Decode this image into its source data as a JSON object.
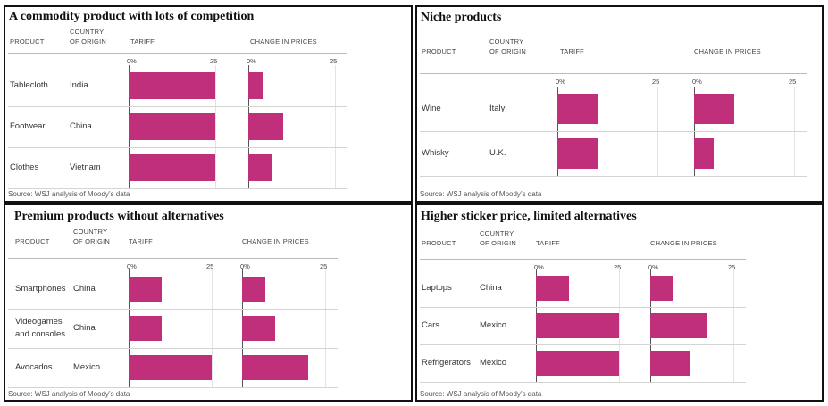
{
  "colors": {
    "bar": "#c0307a",
    "gridline": "#e3e3e3",
    "axis": "#555555",
    "border": "#111111"
  },
  "chart_data": [
    {
      "type": "bar",
      "title": "A commodity product with lots of competition",
      "headers": {
        "product": "PRODUCT",
        "country": "COUNTRY\nOF ORIGIN",
        "tariff": "TARIFF",
        "change": "CHANGE IN PRICES"
      },
      "ticks": {
        "min": "0%",
        "max": "25"
      },
      "xlim": [
        0,
        25
      ],
      "rows": [
        {
          "product": "Tablecloth",
          "country": "India",
          "tariff": 25,
          "change": 4
        },
        {
          "product": "Footwear",
          "country": "China",
          "tariff": 25,
          "change": 10
        },
        {
          "product": "Clothes",
          "country": "Vietnam",
          "tariff": 25,
          "change": 7
        }
      ],
      "source": "Source: WSJ analysis of Moody’s data"
    },
    {
      "type": "bar",
      "title": "Niche products",
      "headers": {
        "product": "PRODUCT",
        "country": "COUNTRY\nOF ORIGIN",
        "tariff": "TARIFF",
        "change": "CHANGE IN PRICES"
      },
      "ticks": {
        "min": "0%",
        "max": "25"
      },
      "xlim": [
        0,
        25
      ],
      "rows": [
        {
          "product": "Wine",
          "country": "Italy",
          "tariff": 10,
          "change": 10
        },
        {
          "product": "Whisky",
          "country": "U.K.",
          "tariff": 10,
          "change": 5
        }
      ],
      "source": "Source: WSJ analysis of Moody’s data"
    },
    {
      "type": "bar",
      "title": "Premium products without alternatives",
      "headers": {
        "product": "PRODUCT",
        "country": "COUNTRY\nOF ORIGIN",
        "tariff": "TARIFF",
        "change": "CHANGE IN PRICES"
      },
      "ticks": {
        "min": "0%",
        "max": "25"
      },
      "xlim": [
        0,
        25
      ],
      "rows": [
        {
          "product": "Smartphones",
          "country": "China",
          "tariff": 10,
          "change": 7
        },
        {
          "product": "Videogames\nand consoles",
          "country": "China",
          "tariff": 10,
          "change": 10
        },
        {
          "product": "Avocados",
          "country": "Mexico",
          "tariff": 25,
          "change": 20
        }
      ],
      "source": "Source: WSJ analysis of Moody’s data"
    },
    {
      "type": "bar",
      "title": "Higher sticker price, limited alternatives",
      "headers": {
        "product": "PRODUCT",
        "country": "COUNTRY\nOF ORIGIN",
        "tariff": "TARIFF",
        "change": "CHANGE IN PRICES"
      },
      "ticks": {
        "min": "0%",
        "max": "25"
      },
      "xlim": [
        0,
        25
      ],
      "rows": [
        {
          "product": "Laptops",
          "country": "China",
          "tariff": 10,
          "change": 7
        },
        {
          "product": "Cars",
          "country": "Mexico",
          "tariff": 25,
          "change": 17
        },
        {
          "product": "Refrigerators",
          "country": "Mexico",
          "tariff": 25,
          "change": 12
        }
      ],
      "source": "Source: WSJ analysis of Moody’s data"
    }
  ]
}
